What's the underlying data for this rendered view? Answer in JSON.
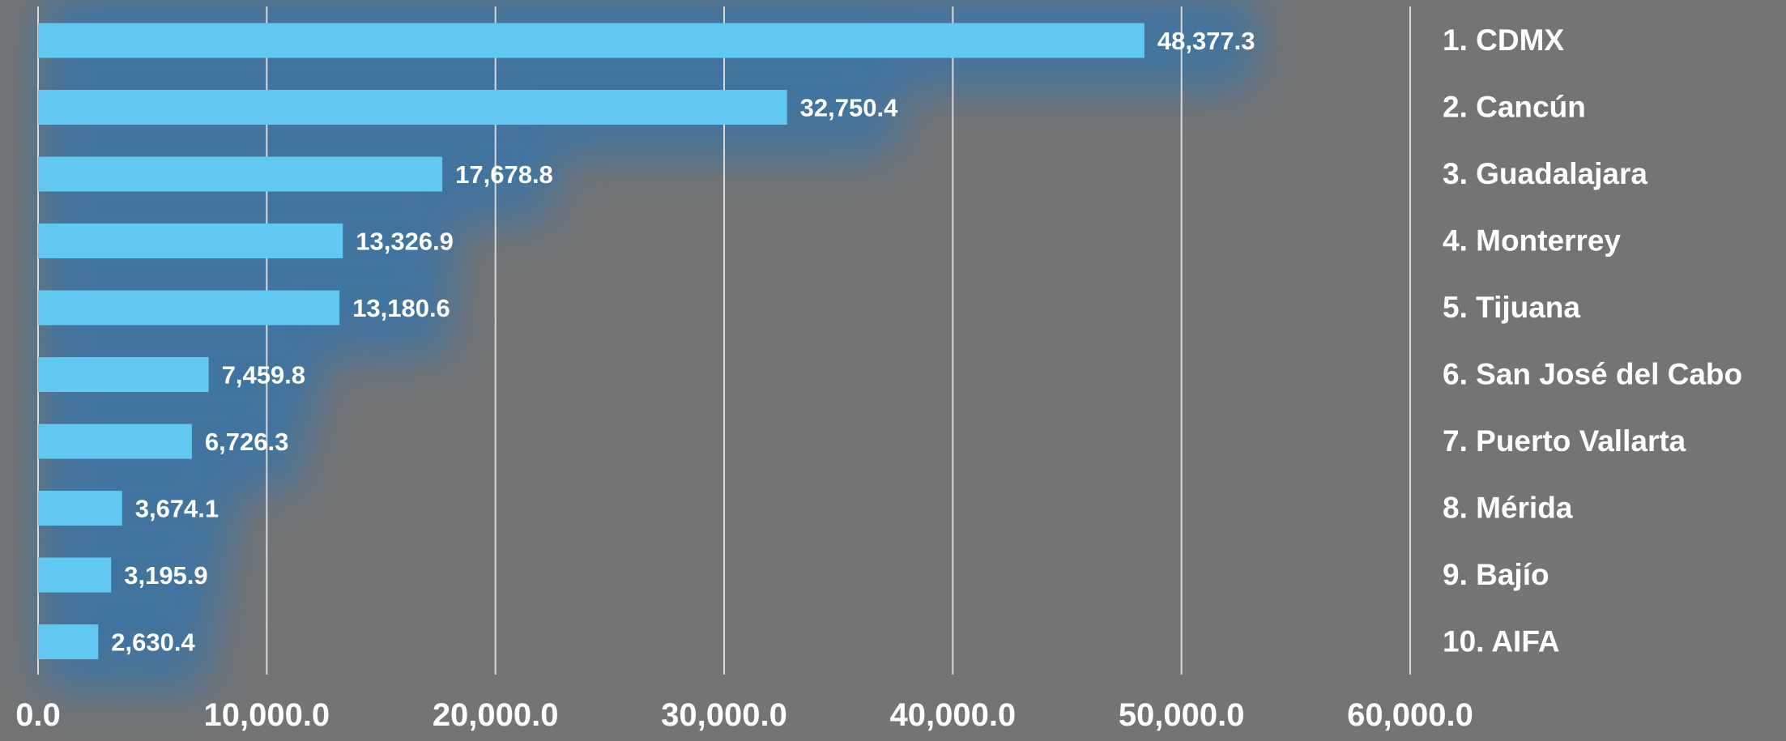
{
  "chart_data": {
    "type": "bar",
    "orientation": "horizontal",
    "categories": [
      "1. CDMX",
      "2. Cancún",
      "3. Guadalajara",
      "4. Monterrey",
      "5. Tijuana",
      "6. San José del Cabo",
      "7. Puerto Vallarta",
      "8. Mérida",
      "9. Bajío",
      "10. AIFA"
    ],
    "values": [
      48377.3,
      32750.4,
      17678.8,
      13326.9,
      13180.6,
      7459.8,
      6726.3,
      3674.1,
      3195.9,
      2630.4
    ],
    "value_labels": [
      "48,377.3",
      "32,750.4",
      "17,678.8",
      "13,326.9",
      "13,180.6",
      "7,459.8",
      "6,726.3",
      "3,674.1",
      "3,195.9",
      "2,630.4"
    ],
    "x_ticks": [
      "0.0",
      "10,000.0",
      "20,000.0",
      "30,000.0",
      "40,000.0",
      "50,000.0",
      "60,000.0"
    ],
    "xlim": [
      0,
      60000
    ],
    "grid": true,
    "legend": "none",
    "category_label_position": "right",
    "title": "",
    "xlabel": "",
    "ylabel": "",
    "colors": {
      "background": "#747474",
      "bar": "#61C9F1",
      "glow": "#3f74a2",
      "gridline": "#d9d9d9",
      "text": "#ffffff"
    }
  }
}
